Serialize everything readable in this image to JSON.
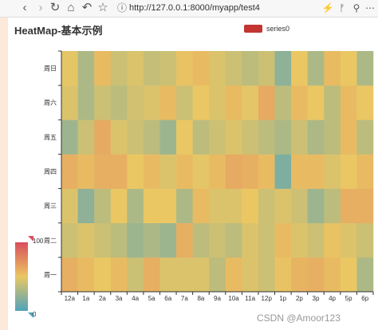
{
  "browser": {
    "back_icon": "chevron-left-icon",
    "forward_icon": "chevron-right-icon",
    "reload_icon": "reload-icon",
    "home_icon": "home-icon",
    "undo_icon": "undo-icon",
    "bookmark_icon": "star-icon",
    "url": "http://127.0.0.1:8000/myapp/test4"
  },
  "watermark": "CSDN @Amoor123",
  "chart_data": {
    "type": "heatmap",
    "title": "HeatMap-基本示例",
    "legend": {
      "entries": [
        "series0"
      ],
      "color": "#c23531",
      "placement": "top-right"
    },
    "x_categories": [
      "12a",
      "1a",
      "2a",
      "3a",
      "4a",
      "5a",
      "6a",
      "7a",
      "8a",
      "9a",
      "10a",
      "11a",
      "12p",
      "1p",
      "2p",
      "3p",
      "4p",
      "5p",
      "6p"
    ],
    "y_categories": [
      "周一",
      "周二",
      "周三",
      "周四",
      "周五",
      "周六",
      "周日"
    ],
    "visual_map": {
      "min": 0,
      "max": 100,
      "min_label": "0",
      "max_label": "100",
      "colors": [
        "#50a3ba",
        "#eac763",
        "#d94e5d"
      ]
    },
    "values": [
      [
        60,
        55,
        50,
        55,
        40,
        60,
        45,
        45,
        45,
        35,
        55,
        45,
        40,
        52,
        58,
        60,
        55,
        50,
        30
      ],
      [
        40,
        45,
        40,
        35,
        25,
        30,
        25,
        60,
        35,
        40,
        35,
        45,
        40,
        55,
        45,
        40,
        52,
        45,
        40
      ],
      [
        45,
        20,
        35,
        50,
        30,
        50,
        50,
        30,
        55,
        45,
        45,
        50,
        40,
        45,
        40,
        25,
        35,
        60,
        60
      ],
      [
        60,
        55,
        60,
        60,
        50,
        55,
        45,
        55,
        48,
        55,
        62,
        60,
        55,
        15,
        55,
        55,
        45,
        50,
        55
      ],
      [
        25,
        40,
        62,
        45,
        40,
        35,
        25,
        50,
        35,
        40,
        45,
        40,
        35,
        30,
        40,
        30,
        35,
        55,
        35
      ],
      [
        45,
        30,
        40,
        35,
        42,
        45,
        55,
        40,
        50,
        45,
        55,
        48,
        62,
        35,
        55,
        50,
        35,
        55,
        50
      ],
      [
        48,
        30,
        55,
        40,
        45,
        38,
        40,
        52,
        55,
        45,
        40,
        35,
        40,
        20,
        50,
        30,
        55,
        50,
        30
      ]
    ]
  }
}
